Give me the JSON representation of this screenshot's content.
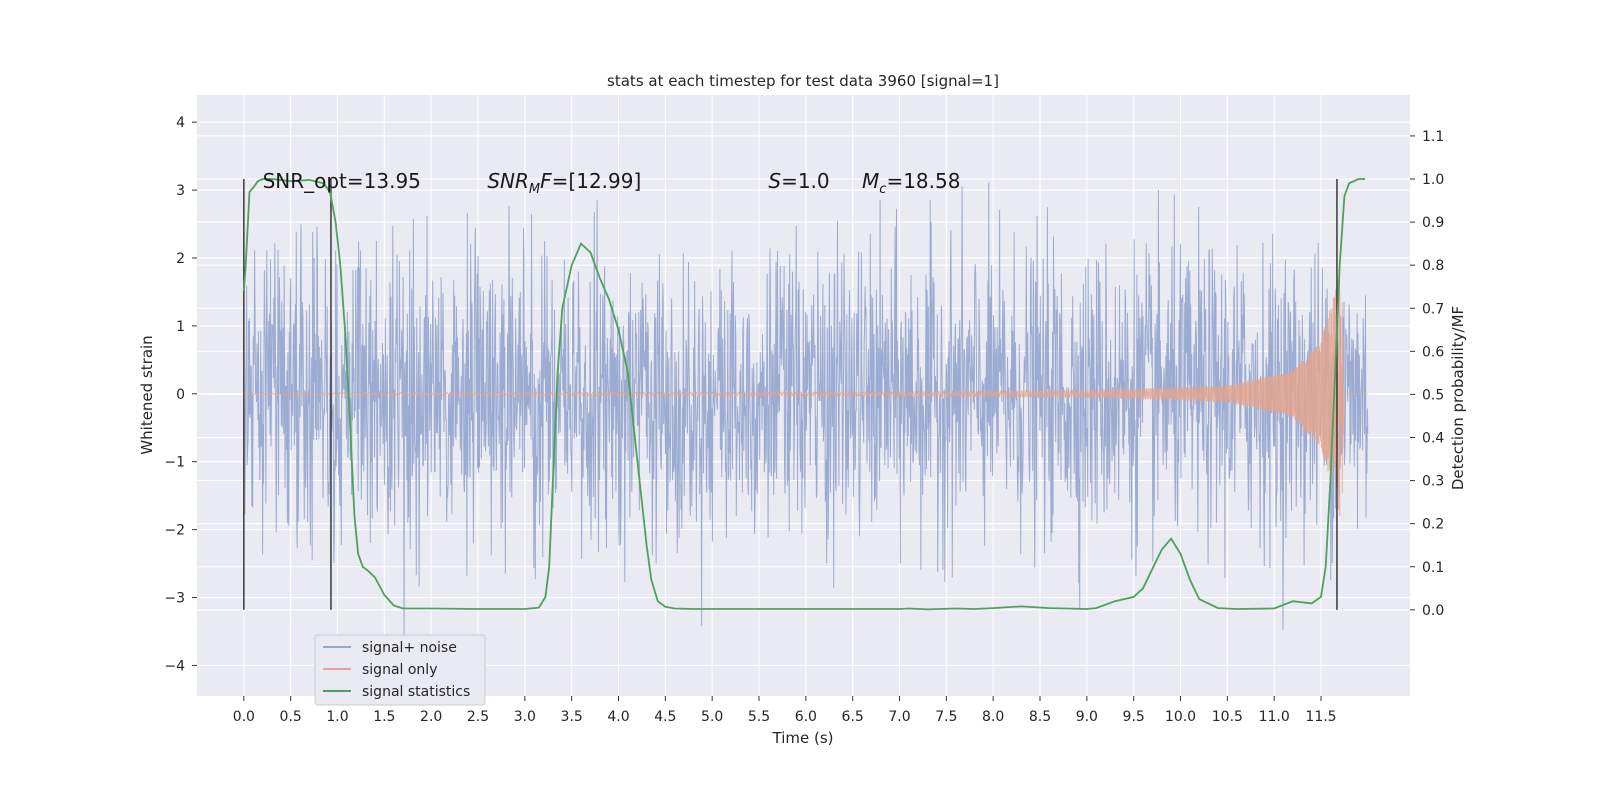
{
  "chart_data": {
    "type": "line",
    "title": "stats at each timestep for test data 3960 [signal=1]",
    "xlabel": "Time (s)",
    "ylabel": "Whitened strain",
    "y2label": "Detection probability/MF",
    "xlim": [
      -0.5,
      12.45
    ],
    "ylim": [
      -4.45,
      4.4
    ],
    "y2lim": [
      -0.2,
      1.195
    ],
    "grid": true,
    "x_ticks": [
      "0.0",
      "0.5",
      "1.0",
      "1.5",
      "2.0",
      "2.5",
      "3.0",
      "3.5",
      "4.0",
      "4.5",
      "5.0",
      "5.5",
      "6.0",
      "6.5",
      "7.0",
      "7.5",
      "8.0",
      "8.5",
      "9.0",
      "9.5",
      "10.0",
      "10.5",
      "11.0",
      "11.5"
    ],
    "y_ticks": [
      "−4",
      "−3",
      "−2",
      "−1",
      "0",
      "1",
      "2",
      "3",
      "4"
    ],
    "y2_ticks": [
      "0.0",
      "0.1",
      "0.2",
      "0.3",
      "0.4",
      "0.5",
      "0.6",
      "0.7",
      "0.8",
      "0.9",
      "1.0",
      "1.1"
    ],
    "annotations": [
      {
        "id": "snr-opt",
        "text": "SNR_opt=13.95",
        "x": 0.2,
        "y": 3.15
      },
      {
        "id": "snr-mf",
        "text_main": "SNR",
        "text_sub": "M",
        "text_rest": "F=[12.99]",
        "x": 2.6,
        "y": 3.15
      },
      {
        "id": "s-val",
        "text_main": "S",
        "text_rest": "=1.0",
        "x": 5.6,
        "y": 3.15
      },
      {
        "id": "mc-val",
        "text_main": "M",
        "text_sub": "c",
        "text_rest": "=18.58",
        "x": 6.6,
        "y": 3.15
      }
    ],
    "legend_position": "lower-left",
    "series": [
      {
        "name": "signal+ noise",
        "color": "#97a8cf",
        "axis": "left",
        "description_points": [
          [
            0.0,
            0.0
          ]
        ],
        "range": [
          0.0,
          12.0
        ],
        "sigma": 1.0
      },
      {
        "name": "signal only",
        "color": "#e3a58f",
        "axis": "left",
        "chirp_envelope": [
          [
            0.0,
            0.01
          ],
          [
            7.0,
            0.03
          ],
          [
            9.0,
            0.05
          ],
          [
            10.5,
            0.12
          ],
          [
            11.2,
            0.35
          ],
          [
            11.5,
            0.8
          ],
          [
            11.65,
            1.5
          ],
          [
            11.72,
            2.0
          ],
          [
            11.75,
            0.0
          ]
        ]
      },
      {
        "name": "signal statistics",
        "color": "#4ca25a",
        "axis": "right",
        "x": [
          0.0,
          0.02,
          0.06,
          0.1,
          0.15,
          0.2,
          0.3,
          0.5,
          0.7,
          0.85,
          0.92,
          0.98,
          1.03,
          1.08,
          1.13,
          1.18,
          1.22,
          1.27,
          1.33,
          1.4,
          1.5,
          1.6,
          1.7,
          1.8,
          2.0,
          2.5,
          3.0,
          3.15,
          3.22,
          3.26,
          3.3,
          3.35,
          3.4,
          3.5,
          3.6,
          3.7,
          3.8,
          3.9,
          4.0,
          4.1,
          4.2,
          4.3,
          4.35,
          4.42,
          4.5,
          4.6,
          4.8,
          5.5,
          6.5,
          7.0,
          7.1,
          7.3,
          7.6,
          7.8,
          8.0,
          8.3,
          8.6,
          9.0,
          9.1,
          9.3,
          9.5,
          9.6,
          9.8,
          9.9,
          10.0,
          10.1,
          10.2,
          10.4,
          10.6,
          11.0,
          11.2,
          11.4,
          11.5,
          11.55,
          11.6,
          11.65,
          11.7,
          11.75,
          11.8,
          11.9,
          11.97
        ],
        "y": [
          0.74,
          0.8,
          0.97,
          0.98,
          0.995,
          1.0,
          1.0,
          0.995,
          0.998,
          0.99,
          0.97,
          0.9,
          0.8,
          0.65,
          0.45,
          0.22,
          0.13,
          0.1,
          0.09,
          0.075,
          0.035,
          0.01,
          0.003,
          0.003,
          0.003,
          0.002,
          0.002,
          0.005,
          0.03,
          0.1,
          0.3,
          0.55,
          0.7,
          0.8,
          0.85,
          0.83,
          0.77,
          0.72,
          0.65,
          0.55,
          0.35,
          0.15,
          0.07,
          0.02,
          0.007,
          0.003,
          0.002,
          0.002,
          0.002,
          0.002,
          0.003,
          0.001,
          0.003,
          0.002,
          0.004,
          0.008,
          0.004,
          0.002,
          0.004,
          0.02,
          0.03,
          0.05,
          0.14,
          0.165,
          0.13,
          0.07,
          0.025,
          0.004,
          0.002,
          0.003,
          0.02,
          0.015,
          0.03,
          0.1,
          0.3,
          0.55,
          0.8,
          0.96,
          0.99,
          1.0,
          1.0
        ]
      }
    ],
    "vertical_markers": [
      0.0,
      0.93,
      11.67
    ]
  }
}
